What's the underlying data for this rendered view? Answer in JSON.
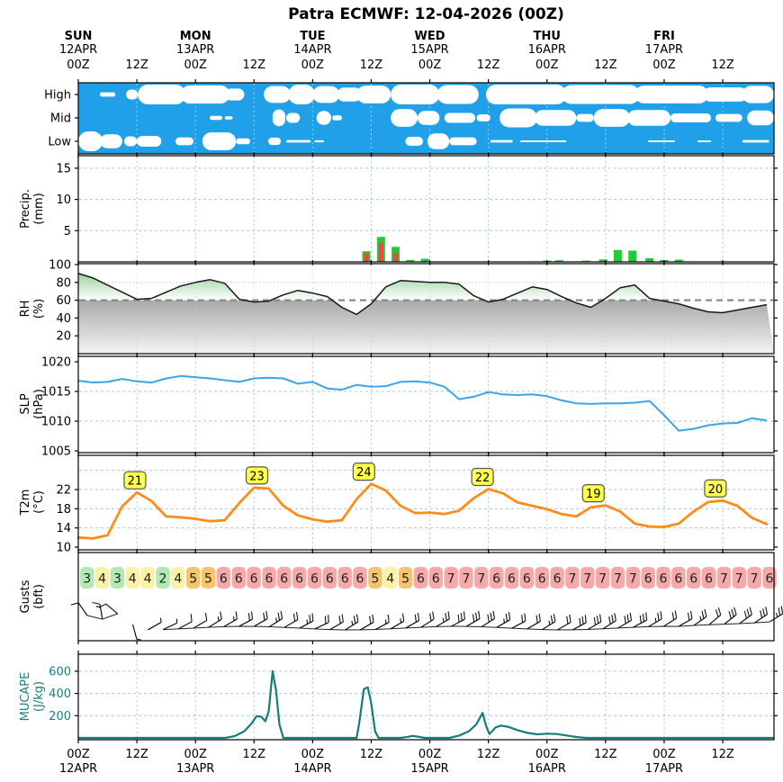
{
  "title": "Patra ECMWF: 12-04-2026 (00Z)",
  "time_axis": {
    "days": [
      {
        "name": "SUN",
        "date": "12APR"
      },
      {
        "name": "MON",
        "date": "13APR"
      },
      {
        "name": "TUE",
        "date": "14APR"
      },
      {
        "name": "WED",
        "date": "15APR"
      },
      {
        "name": "THU",
        "date": "16APR"
      },
      {
        "name": "FRI",
        "date": "17APR"
      }
    ],
    "hour_labels": [
      "00Z",
      "12Z"
    ],
    "step_hours": 3,
    "span_hours": 142.5
  },
  "chart_data": [
    {
      "type": "area",
      "name": "cloud-cover",
      "rows": [
        "High",
        "Mid",
        "Low"
      ],
      "bg_color": "#1fa0e8",
      "cloud_color": "#ffffff",
      "segments": {
        "High": [
          [
            4.4,
            7.6,
            0.22
          ],
          [
            9.8,
            12.2,
            0.5
          ],
          [
            12.2,
            22,
            1
          ],
          [
            21,
            31,
            0.92
          ],
          [
            30,
            34,
            0.6
          ],
          [
            38,
            43.5,
            0.85
          ],
          [
            43,
            48.5,
            1
          ],
          [
            48,
            53.5,
            0.85
          ],
          [
            53,
            58,
            0.7
          ],
          [
            57,
            64,
            0.9
          ],
          [
            64,
            74,
            1
          ],
          [
            73.5,
            82,
            0.95
          ],
          [
            83.5,
            100,
            1
          ],
          [
            99,
            115,
            0.95
          ],
          [
            114,
            129,
            0.9
          ],
          [
            128,
            137,
            0.72
          ],
          [
            136,
            144,
            0.88
          ]
        ],
        "Mid": [
          [
            26.9,
            29.5,
            0.2
          ],
          [
            30,
            31.6,
            0.16
          ],
          [
            39.8,
            42.4,
            0.85
          ],
          [
            42.6,
            45.4,
            0.5
          ],
          [
            48.8,
            51.8,
            0.7
          ],
          [
            52,
            54,
            0.25
          ],
          [
            64,
            69.5,
            0.9
          ],
          [
            69.5,
            74,
            0.7
          ],
          [
            75,
            81.3,
            0.5
          ],
          [
            81.6,
            84.4,
            0.35
          ],
          [
            86.3,
            94,
            0.95
          ],
          [
            93.5,
            102,
            0.8
          ],
          [
            102,
            105.6,
            0.4
          ],
          [
            105.6,
            113,
            0.9
          ],
          [
            112.5,
            121.3,
            0.8
          ],
          [
            121.3,
            129.6,
            0.45
          ],
          [
            130.5,
            136,
            0.4
          ],
          [
            137,
            144,
            0.75
          ]
        ],
        "Low": [
          [
            0,
            5,
            1
          ],
          [
            4.5,
            9,
            0.7
          ],
          [
            9.4,
            12,
            0.5
          ],
          [
            12,
            17,
            0.55
          ],
          [
            19.9,
            23.6,
            0.4
          ],
          [
            25.4,
            32.3,
            0.9
          ],
          [
            32.3,
            35.2,
            0.3
          ],
          [
            38.9,
            41.5,
            0.38
          ],
          [
            42.6,
            47.6,
            0.12
          ],
          [
            48.4,
            50.3,
            0.1
          ],
          [
            67,
            70.6,
            0.45
          ],
          [
            71.5,
            76,
            0.8
          ],
          [
            76,
            81.6,
            0.4
          ],
          [
            84.4,
            89,
            0.12
          ],
          [
            90.5,
            100,
            0.09
          ],
          [
            116.7,
            122.2,
            0.09
          ],
          [
            126.8,
            129.6,
            0.09
          ],
          [
            136,
            141.5,
            0.12
          ]
        ]
      }
    },
    {
      "type": "bar",
      "name": "precipitation",
      "label": "Precip.",
      "unit": "(mm)",
      "yticks": [
        5,
        10,
        15
      ],
      "ymax": 17,
      "total_color": "#22cc33",
      "convective_color": "#ff4040",
      "bars": [
        {
          "h": 59,
          "total": 1.7,
          "conv": 1.4
        },
        {
          "h": 62,
          "total": 4.0,
          "conv": 3.1
        },
        {
          "h": 65,
          "total": 2.4,
          "conv": 1.5
        },
        {
          "h": 68,
          "total": 0.3,
          "conv": 0.05
        },
        {
          "h": 71,
          "total": 0.5,
          "conv": 0.12
        },
        {
          "h": 96,
          "total": 0.2,
          "conv": 0
        },
        {
          "h": 98.5,
          "total": 0.25,
          "conv": 0
        },
        {
          "h": 104,
          "total": 0.2,
          "conv": 0
        },
        {
          "h": 107.5,
          "total": 0.4,
          "conv": 0
        },
        {
          "h": 110.5,
          "total": 1.9,
          "conv": 0
        },
        {
          "h": 113.5,
          "total": 1.8,
          "conv": 0
        },
        {
          "h": 117,
          "total": 0.6,
          "conv": 0
        },
        {
          "h": 120,
          "total": 0.3,
          "conv": 0.1
        },
        {
          "h": 123,
          "total": 0.35,
          "conv": 0.12
        }
      ]
    },
    {
      "type": "area",
      "name": "relative-humidity",
      "label": "RH",
      "unit": "(%)",
      "yticks": [
        20,
        40,
        60,
        80,
        100
      ],
      "threshold": 60,
      "line_color": "#1a1a1a",
      "green_fill": "#7cc47c",
      "gray_fill": "#a9a9a9",
      "values": [
        90,
        85,
        77,
        69,
        61,
        62,
        69,
        76,
        80,
        83,
        79,
        61,
        58,
        59,
        66,
        71,
        68,
        64,
        52,
        44,
        56,
        75,
        82,
        81,
        80,
        80,
        78,
        65,
        58,
        61,
        68,
        75,
        72,
        64,
        57,
        52,
        62,
        74,
        77,
        62,
        59,
        56,
        51,
        47,
        46,
        49,
        52,
        55
      ]
    },
    {
      "type": "line",
      "name": "sea-level-pressure",
      "label": "SLP",
      "unit": "(hPa)",
      "yticks": [
        1005,
        1010,
        1015,
        1020
      ],
      "line_color": "#3aa5e8",
      "values": [
        1016.8,
        1016.5,
        1016.6,
        1017.1,
        1016.7,
        1016.5,
        1017.2,
        1017.6,
        1017.4,
        1017.2,
        1016.9,
        1016.6,
        1017.2,
        1017.3,
        1017.2,
        1016.3,
        1016.6,
        1015.5,
        1015.3,
        1016.1,
        1015.8,
        1015.9,
        1016.6,
        1016.7,
        1016.5,
        1015.8,
        1013.7,
        1014.1,
        1014.9,
        1014.5,
        1014.4,
        1014.5,
        1014.2,
        1013.5,
        1013.0,
        1012.9,
        1013.0,
        1013.0,
        1013.1,
        1013.4,
        1011.0,
        1008.4,
        1008.7,
        1009.3,
        1009.6,
        1009.7,
        1010.5,
        1010.1
      ]
    },
    {
      "type": "line",
      "name": "temperature-2m",
      "label": "T2m",
      "unit": "(°C)",
      "yticks": [
        10,
        14,
        18,
        22
      ],
      "line_color": "#ff8c1a",
      "peak_box_color": "#ffff4d",
      "values": [
        12.0,
        11.8,
        12.5,
        18.5,
        21.4,
        19.6,
        16.4,
        16.2,
        15.9,
        15.4,
        15.6,
        19.2,
        22.4,
        22.2,
        18.6,
        16.6,
        15.8,
        15.3,
        15.6,
        20.0,
        23.2,
        21.8,
        18.6,
        17.1,
        17.2,
        16.9,
        17.6,
        20.2,
        22.1,
        21.2,
        19.3,
        18.6,
        17.9,
        16.9,
        16.4,
        18.3,
        18.7,
        17.4,
        14.9,
        14.3,
        14.2,
        14.9,
        17.4,
        19.4,
        19.7,
        18.6,
        16.1,
        14.8
      ],
      "peaks": [
        {
          "h": 11.6,
          "v": 21.4,
          "label": "21"
        },
        {
          "h": 36.6,
          "v": 22.4,
          "label": "23"
        },
        {
          "h": 58.5,
          "v": 23.2,
          "label": "24"
        },
        {
          "h": 82.8,
          "v": 22.1,
          "label": "22"
        },
        {
          "h": 105.5,
          "v": 18.7,
          "label": "19"
        },
        {
          "h": 130.5,
          "v": 19.7,
          "label": "20"
        }
      ]
    },
    {
      "type": "heatmap",
      "name": "wind-gusts",
      "label": "Gusts",
      "unit": "(bft)",
      "values": [
        3,
        4,
        3,
        4,
        4,
        2,
        4,
        5,
        5,
        6,
        6,
        6,
        6,
        6,
        6,
        6,
        6,
        6,
        6,
        5,
        4,
        5,
        6,
        6,
        7,
        7,
        7,
        6,
        6,
        6,
        6,
        6,
        7,
        7,
        7,
        7,
        7,
        6,
        6,
        6,
        6,
        6,
        7,
        7,
        7,
        6
      ],
      "value_colors": {
        "2": "#b2e8b2",
        "3": "#b2e8b2",
        "4": "#faf2a8",
        "5": "#f6c46d",
        "6": "#f7a8a8",
        "7": "#f7a8a8"
      },
      "barbs": [
        {
          "r": -125,
          "f": 1,
          "x": 0
        },
        {
          "r": -100,
          "f": 1,
          "x": 1
        },
        {
          "r": -140,
          "f": 1,
          "x": 0
        },
        {
          "r": 75,
          "f": 0,
          "x": 1
        },
        {
          "r": -30,
          "f": 0,
          "x": 1
        },
        {
          "r": -25,
          "f": 0,
          "x": 1
        },
        {
          "r": -28,
          "f": 1,
          "x": 0
        },
        {
          "r": -30,
          "f": 1,
          "x": 0
        },
        {
          "r": -32,
          "f": 1,
          "x": 1
        },
        {
          "r": -30,
          "f": 1,
          "x": 1
        },
        {
          "r": -28,
          "f": 2,
          "x": 0
        },
        {
          "r": -30,
          "f": 2,
          "x": 0
        },
        {
          "r": -32,
          "f": 2,
          "x": 1
        },
        {
          "r": -30,
          "f": 2,
          "x": 0
        },
        {
          "r": -28,
          "f": 2,
          "x": 1
        },
        {
          "r": -25,
          "f": 2,
          "x": 0
        },
        {
          "r": -30,
          "f": 2,
          "x": 0
        },
        {
          "r": -32,
          "f": 2,
          "x": 1
        },
        {
          "r": -30,
          "f": 2,
          "x": 0
        },
        {
          "r": -28,
          "f": 1,
          "x": 1
        },
        {
          "r": -30,
          "f": 1,
          "x": 1
        },
        {
          "r": -30,
          "f": 2,
          "x": 0
        },
        {
          "r": -32,
          "f": 2,
          "x": 0
        },
        {
          "r": -30,
          "f": 2,
          "x": 1
        },
        {
          "r": -28,
          "f": 3,
          "x": 0
        },
        {
          "r": -30,
          "f": 3,
          "x": 0
        },
        {
          "r": -32,
          "f": 3,
          "x": 0
        },
        {
          "r": -30,
          "f": 2,
          "x": 1
        },
        {
          "r": -28,
          "f": 2,
          "x": 0
        },
        {
          "r": -30,
          "f": 2,
          "x": 0
        },
        {
          "r": -32,
          "f": 2,
          "x": 1
        },
        {
          "r": -30,
          "f": 2,
          "x": 0
        },
        {
          "r": -28,
          "f": 3,
          "x": 0
        },
        {
          "r": -30,
          "f": 3,
          "x": 0
        },
        {
          "r": -32,
          "f": 3,
          "x": 0
        },
        {
          "r": -30,
          "f": 3,
          "x": 0
        },
        {
          "r": -28,
          "f": 3,
          "x": 0
        },
        {
          "r": -30,
          "f": 2,
          "x": 1
        },
        {
          "r": -32,
          "f": 2,
          "x": 0
        },
        {
          "r": -30,
          "f": 2,
          "x": 0
        },
        {
          "r": -35,
          "f": 2,
          "x": 1
        },
        {
          "r": -40,
          "f": 2,
          "x": 0
        },
        {
          "r": -38,
          "f": 3,
          "x": 0
        },
        {
          "r": -36,
          "f": 3,
          "x": 0
        },
        {
          "r": -34,
          "f": 3,
          "x": 0
        },
        {
          "r": -32,
          "f": 2,
          "x": 1
        }
      ]
    },
    {
      "type": "line",
      "name": "mucape",
      "label": "MUCAPE",
      "unit": "(J/kg)",
      "yticks": [
        200,
        400,
        600
      ],
      "line_color": "#177d77",
      "axis_color": "#1a8080",
      "points": [
        [
          0,
          0
        ],
        [
          24,
          0
        ],
        [
          30,
          0
        ],
        [
          32,
          15
        ],
        [
          34,
          60
        ],
        [
          35.5,
          130
        ],
        [
          36.5,
          195
        ],
        [
          37.5,
          190
        ],
        [
          38.3,
          150
        ],
        [
          39,
          240
        ],
        [
          39.8,
          600
        ],
        [
          40.5,
          430
        ],
        [
          41.2,
          120
        ],
        [
          42,
          0
        ],
        [
          54,
          0
        ],
        [
          57,
          0
        ],
        [
          57.5,
          120
        ],
        [
          58.5,
          440
        ],
        [
          59.3,
          455
        ],
        [
          60,
          310
        ],
        [
          60.8,
          60
        ],
        [
          61.5,
          0
        ],
        [
          66,
          0
        ],
        [
          67.5,
          10
        ],
        [
          68.5,
          18
        ],
        [
          70,
          8
        ],
        [
          71,
          0
        ],
        [
          76,
          0
        ],
        [
          78,
          20
        ],
        [
          80,
          60
        ],
        [
          81.5,
          120
        ],
        [
          82.8,
          225
        ],
        [
          83.5,
          110
        ],
        [
          84.2,
          35
        ],
        [
          85.5,
          95
        ],
        [
          86.5,
          110
        ],
        [
          88,
          100
        ],
        [
          90,
          70
        ],
        [
          92,
          45
        ],
        [
          94,
          32
        ],
        [
          96,
          38
        ],
        [
          98,
          35
        ],
        [
          100,
          22
        ],
        [
          102,
          8
        ],
        [
          104,
          0
        ],
        [
          142.5,
          0
        ]
      ]
    }
  ]
}
